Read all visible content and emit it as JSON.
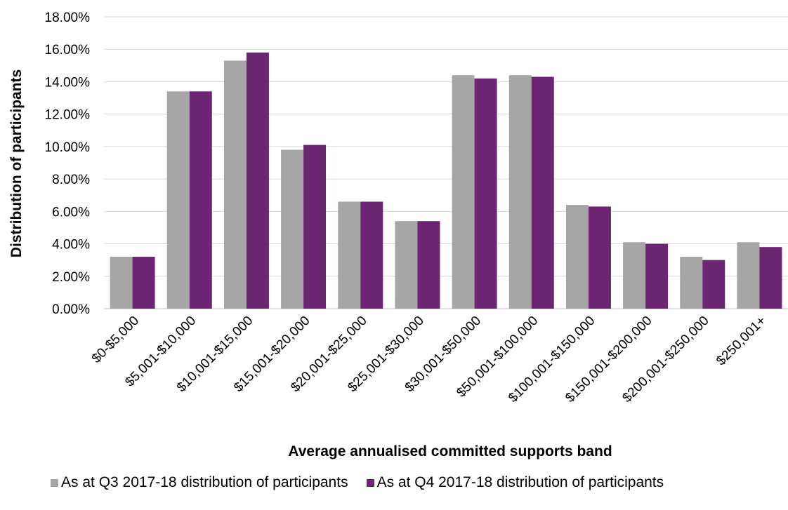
{
  "chart_data": {
    "type": "bar",
    "title": "",
    "xlabel": "Average annualised committed supports band",
    "ylabel": "Distribution of participants",
    "ylim": [
      0,
      18
    ],
    "yticks": [
      "0.00%",
      "2.00%",
      "4.00%",
      "6.00%",
      "8.00%",
      "10.00%",
      "12.00%",
      "14.00%",
      "16.00%",
      "18.00%"
    ],
    "grid": true,
    "legend_position": "bottom",
    "categories": [
      "$0-$5,000",
      "$5,001-$10,000",
      "$10,001-$15,000",
      "$15,001-$20,000",
      "$20,001-$25,000",
      "$25,001-$30,000",
      "$30,001-$50,000",
      "$50,001-$100,000",
      "$100,001-$150,000",
      "$150,001-$200,000",
      "$200,001-$250,000",
      "$250,001+"
    ],
    "series": [
      {
        "name": "As at Q3 2017-18 distribution of participants",
        "color": "#a6a6a6",
        "values": [
          3.2,
          13.4,
          15.3,
          9.8,
          6.6,
          5.4,
          14.4,
          14.4,
          6.4,
          4.1,
          3.2,
          4.1
        ]
      },
      {
        "name": "As at Q4 2017-18 distribution of participants",
        "color": "#6b2572",
        "values": [
          3.2,
          13.4,
          15.8,
          10.1,
          6.6,
          5.4,
          14.2,
          14.3,
          6.3,
          4.0,
          3.0,
          3.8
        ]
      }
    ]
  }
}
